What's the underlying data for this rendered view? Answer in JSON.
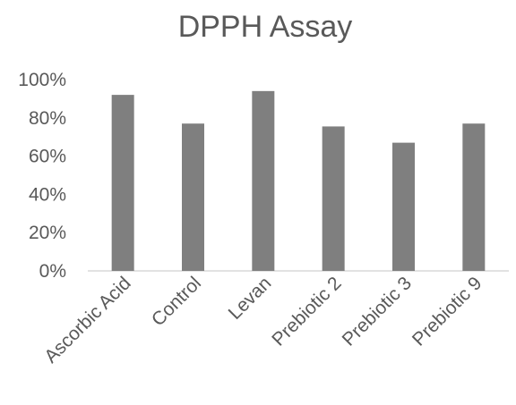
{
  "chart_data": {
    "type": "bar",
    "title": "DPPH Assay",
    "xlabel": "",
    "ylabel": "",
    "categories": [
      "Ascorbic Acid",
      "Control",
      "Levan",
      "Prebiotic 2",
      "Prebiotic 3",
      "Prebiotic 9"
    ],
    "values": [
      0.92,
      0.77,
      0.94,
      0.755,
      0.67,
      0.77
    ],
    "ylim": [
      0,
      1.0
    ],
    "yticks": [
      0,
      0.2,
      0.4,
      0.6,
      0.8,
      1.0
    ],
    "ytick_labels": [
      "0%",
      "20%",
      "40%",
      "60%",
      "80%",
      "100%"
    ],
    "grid": false,
    "legend": "none",
    "colors": {
      "bar": "#7f7f7f",
      "text": "#595959",
      "axis": "#d9d9d9"
    }
  }
}
